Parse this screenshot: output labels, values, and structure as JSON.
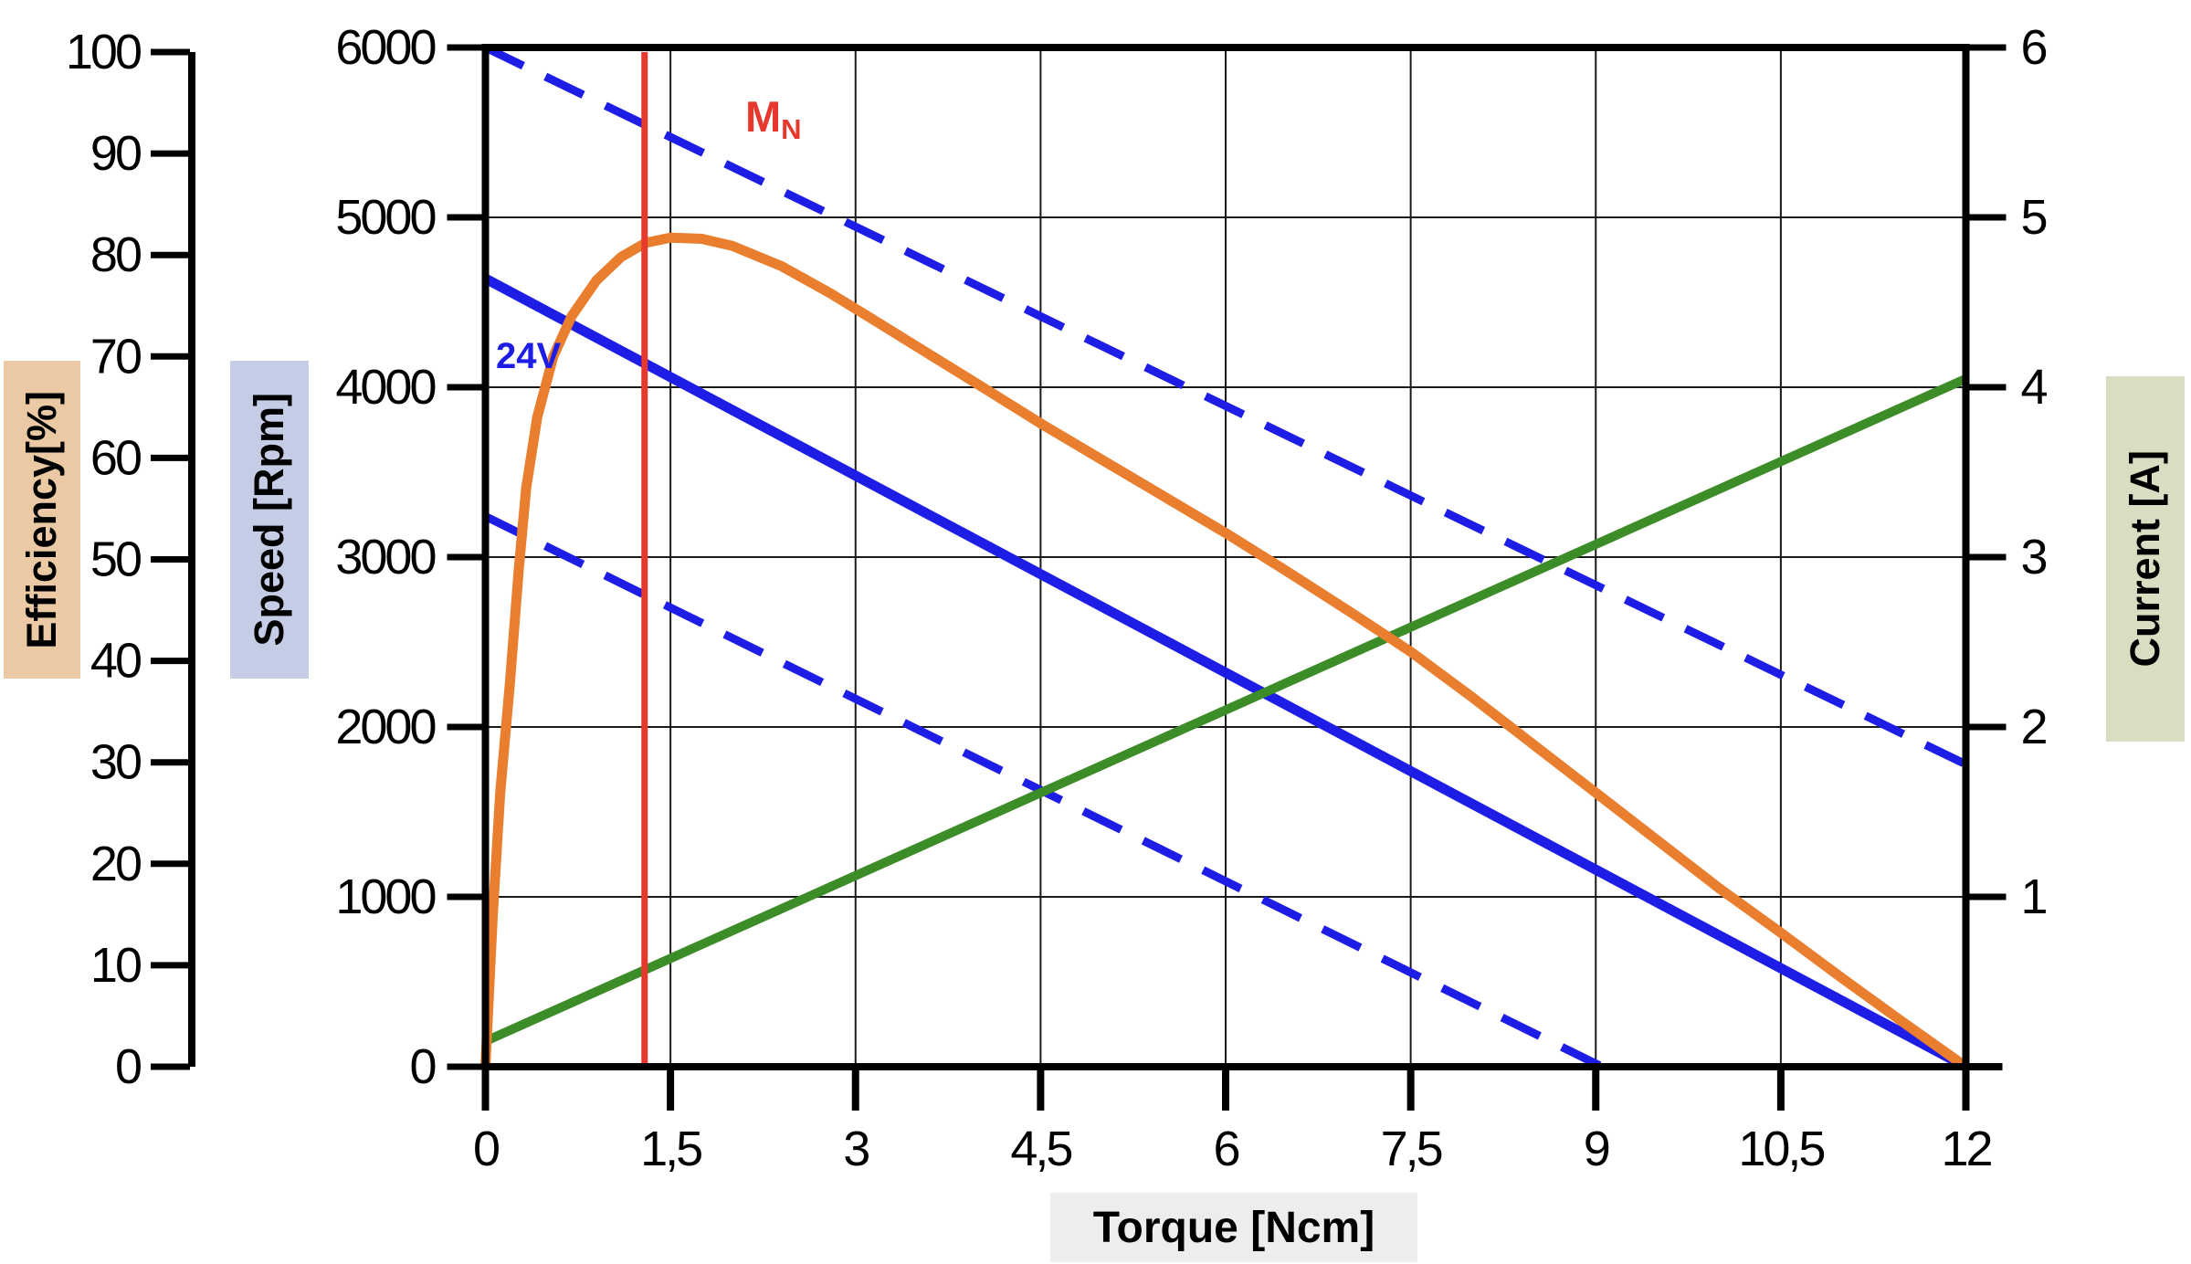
{
  "axis_labels": {
    "efficiency": "Efficiency[%]",
    "speed": "Speed [Rpm]",
    "current": "Current [A]",
    "torque": "Torque [Ncm]"
  },
  "annotations": {
    "voltage": "24V",
    "nominal_torque_main": "M",
    "nominal_torque_sub": "N"
  },
  "colors": {
    "blue_line": "#1d1de6",
    "orange_line": "#e87e2e",
    "green_line": "#3c8c28",
    "red_line": "#e6382c",
    "grid": "#1a1a1a",
    "axis": "#000000",
    "efficiency_strip_bg": "#ebc9a4",
    "speed_strip_bg": "#c5cde6",
    "current_strip_bg": "#d9ddc1",
    "torque_strip_bg": "#ededed",
    "label_text": "#000000"
  },
  "chart_data": {
    "type": "line",
    "x_axis": {
      "label": "Torque [Ncm]",
      "min": 0,
      "max": 12,
      "gridlines": [
        1.5,
        3,
        4.5,
        6,
        7.5,
        9,
        10.5
      ],
      "ticks": [
        {
          "v": 0,
          "t": "0"
        },
        {
          "v": 1.5,
          "t": "1,5"
        },
        {
          "v": 3,
          "t": "3"
        },
        {
          "v": 4.5,
          "t": "4,5"
        },
        {
          "v": 6,
          "t": "6"
        },
        {
          "v": 7.5,
          "t": "7,5"
        },
        {
          "v": 9,
          "t": "9"
        },
        {
          "v": 10.5,
          "t": "10,5"
        },
        {
          "v": 12,
          "t": "12"
        }
      ]
    },
    "left_axis": {
      "label": "Speed [Rpm]",
      "min": 0,
      "max": 6000,
      "gridlines": [
        1000,
        2000,
        3000,
        4000,
        5000
      ],
      "ticks": [
        {
          "v": 0,
          "t": "0"
        },
        {
          "v": 1000,
          "t": "1000"
        },
        {
          "v": 2000,
          "t": "2000"
        },
        {
          "v": 3000,
          "t": "3000"
        },
        {
          "v": 4000,
          "t": "4000"
        },
        {
          "v": 5000,
          "t": "5000"
        },
        {
          "v": 6000,
          "t": "6000"
        }
      ]
    },
    "right_axis": {
      "label": "Current [A]",
      "min": 0,
      "max": 6,
      "ticks": [
        {
          "v": 1,
          "t": "1"
        },
        {
          "v": 2,
          "t": "2"
        },
        {
          "v": 3,
          "t": "3"
        },
        {
          "v": 4,
          "t": "4"
        },
        {
          "v": 5,
          "t": "5"
        },
        {
          "v": 6,
          "t": "6"
        }
      ]
    },
    "efficiency_axis": {
      "label": "Efficiency[%]",
      "min": 0,
      "max": 100,
      "ticks": [
        {
          "v": 0,
          "t": "0"
        },
        {
          "v": 10,
          "t": "10"
        },
        {
          "v": 20,
          "t": "20"
        },
        {
          "v": 30,
          "t": "30"
        },
        {
          "v": 40,
          "t": "40"
        },
        {
          "v": 50,
          "t": "50"
        },
        {
          "v": 60,
          "t": "60"
        },
        {
          "v": 70,
          "t": "70"
        },
        {
          "v": 80,
          "t": "80"
        },
        {
          "v": 90,
          "t": "90"
        },
        {
          "v": 100,
          "t": "100"
        }
      ]
    },
    "series": [
      {
        "name": "speed-torque-24v",
        "axis": "rpm",
        "style": "solid",
        "color_key": "blue_line",
        "width": 11,
        "annotation": "24V",
        "points": [
          [
            0,
            4640
          ],
          [
            12,
            0
          ]
        ]
      },
      {
        "name": "speed-tolerance-upper",
        "axis": "rpm",
        "style": "dashed",
        "color_key": "blue_line",
        "width": 9,
        "points": [
          [
            0,
            6000
          ],
          [
            12,
            1780
          ]
        ]
      },
      {
        "name": "speed-tolerance-lower",
        "axis": "rpm",
        "style": "dashed",
        "color_key": "blue_line",
        "width": 9,
        "points": [
          [
            0,
            3240
          ],
          [
            9.05,
            0
          ]
        ]
      },
      {
        "name": "current-torque",
        "axis": "amp",
        "style": "solid",
        "color_key": "green_line",
        "width": 10,
        "points": [
          [
            0,
            0.15
          ],
          [
            12,
            4.05
          ]
        ]
      },
      {
        "name": "efficiency-torque",
        "axis": "eff",
        "style": "solid",
        "color_key": "orange_line",
        "width": 11,
        "peak": {
          "torque": 1.6,
          "efficiency": 81.7
        },
        "points": [
          [
            0,
            0
          ],
          [
            0.06,
            15
          ],
          [
            0.12,
            27
          ],
          [
            0.2,
            38
          ],
          [
            0.27,
            49
          ],
          [
            0.33,
            57
          ],
          [
            0.42,
            64
          ],
          [
            0.55,
            70
          ],
          [
            0.7,
            74
          ],
          [
            0.9,
            77.5
          ],
          [
            1.1,
            79.8
          ],
          [
            1.3,
            81.2
          ],
          [
            1.5,
            81.7
          ],
          [
            1.75,
            81.6
          ],
          [
            2.0,
            80.9
          ],
          [
            2.4,
            78.9
          ],
          [
            2.8,
            76.2
          ],
          [
            3.2,
            73.2
          ],
          [
            3.6,
            70.2
          ],
          [
            4.0,
            67.2
          ],
          [
            4.5,
            63.4
          ],
          [
            5.0,
            59.8
          ],
          [
            5.5,
            56.2
          ],
          [
            6.0,
            52.6
          ],
          [
            6.5,
            48.8
          ],
          [
            7.0,
            44.9
          ],
          [
            7.5,
            40.9
          ],
          [
            8.0,
            36.4
          ],
          [
            8.5,
            31.7
          ],
          [
            9.0,
            27.0
          ],
          [
            9.5,
            22.3
          ],
          [
            10.0,
            17.6
          ],
          [
            10.5,
            13.2
          ],
          [
            11.0,
            8.7
          ],
          [
            11.5,
            4.3
          ],
          [
            12.0,
            0
          ]
        ]
      },
      {
        "name": "nominal-torque-marker",
        "axis": "x-marker",
        "style": "vline",
        "color_key": "red_line",
        "width": 7,
        "x": 1.29,
        "annotation": "MN"
      }
    ]
  }
}
